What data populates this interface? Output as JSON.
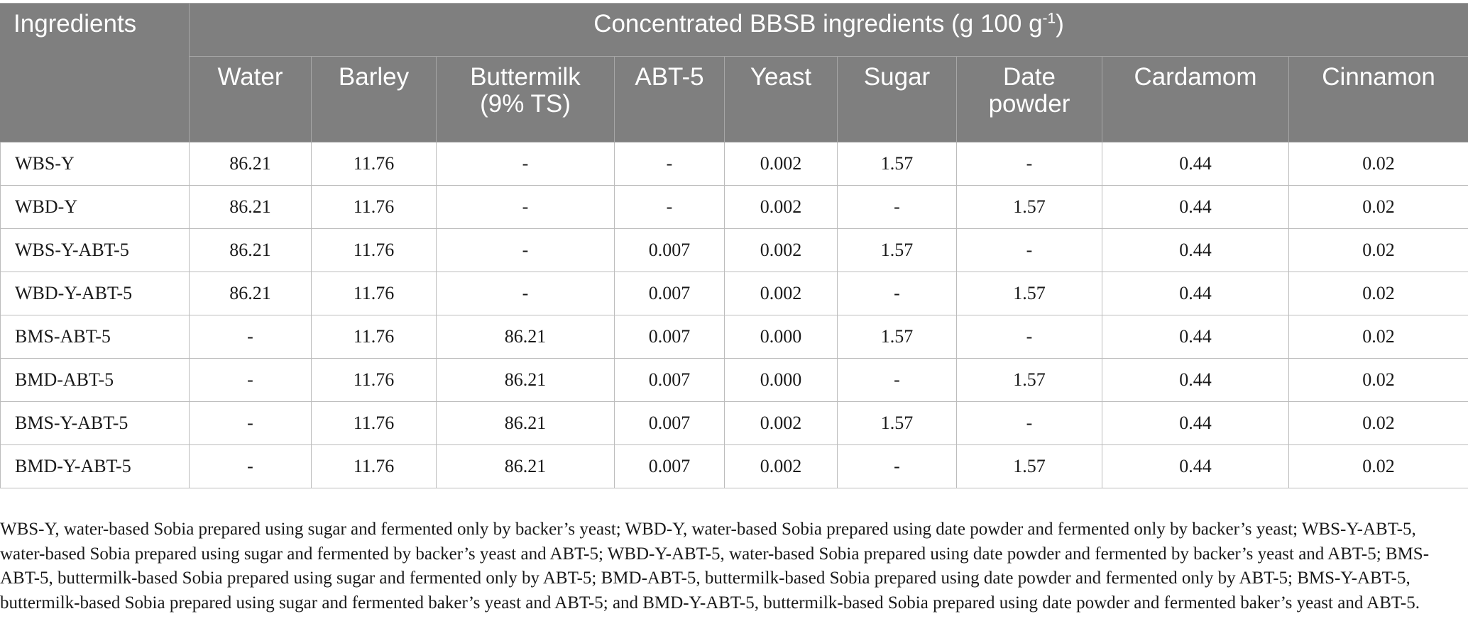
{
  "table": {
    "corner_header": "Ingredients",
    "group_header": "Concentrated BBSB ingredients (g 100 g",
    "group_header_sup": "-1",
    "group_header_suffix": ")",
    "columns": [
      {
        "line1": "Water",
        "line2": ""
      },
      {
        "line1": "Barley",
        "line2": ""
      },
      {
        "line1": "Buttermilk",
        "line2": "(9% TS)"
      },
      {
        "line1": "ABT-5",
        "line2": ""
      },
      {
        "line1": "Yeast",
        "line2": ""
      },
      {
        "line1": "Sugar",
        "line2": ""
      },
      {
        "line1": "Date",
        "line2": "powder"
      },
      {
        "line1": "Cardamom",
        "line2": ""
      },
      {
        "line1": "Cinnamon",
        "line2": ""
      }
    ],
    "rows": [
      {
        "name": "WBS-Y",
        "cells": [
          "86.21",
          "11.76",
          "-",
          "-",
          "0.002",
          "1.57",
          "-",
          "0.44",
          "0.02"
        ]
      },
      {
        "name": "WBD-Y",
        "cells": [
          "86.21",
          "11.76",
          "-",
          "-",
          "0.002",
          "-",
          "1.57",
          "0.44",
          "0.02"
        ]
      },
      {
        "name": "WBS-Y-ABT-5",
        "cells": [
          "86.21",
          "11.76",
          "-",
          "0.007",
          "0.002",
          "1.57",
          "-",
          "0.44",
          "0.02"
        ]
      },
      {
        "name": "WBD-Y-ABT-5",
        "cells": [
          "86.21",
          "11.76",
          "-",
          "0.007",
          "0.002",
          "-",
          "1.57",
          "0.44",
          "0.02"
        ]
      },
      {
        "name": "BMS-ABT-5",
        "cells": [
          "-",
          "11.76",
          "86.21",
          "0.007",
          "0.000",
          "1.57",
          "-",
          "0.44",
          "0.02"
        ]
      },
      {
        "name": "BMD-ABT-5",
        "cells": [
          "-",
          "11.76",
          "86.21",
          "0.007",
          "0.000",
          "-",
          "1.57",
          "0.44",
          "0.02"
        ]
      },
      {
        "name": "BMS-Y-ABT-5",
        "cells": [
          "-",
          "11.76",
          "86.21",
          "0.007",
          "0.002",
          "1.57",
          "-",
          "0.44",
          "0.02"
        ]
      },
      {
        "name": "BMD-Y-ABT-5",
        "cells": [
          "-",
          "11.76",
          "86.21",
          "0.007",
          "0.002",
          "-",
          "1.57",
          "0.44",
          "0.02"
        ]
      }
    ]
  },
  "footnote": "WBS-Y, water-based Sobia prepared using sugar and fermented only by backer’s yeast; WBD-Y, water-based Sobia prepared using date powder and fermented only by backer’s yeast; WBS-Y-ABT-5, water-based Sobia prepared using sugar and fermented by backer’s yeast and ABT-5; WBD-Y-ABT-5, water-based Sobia prepared using date powder and fermented by backer’s yeast and ABT-5; BMS-ABT-5, buttermilk-based Sobia prepared using sugar and fermented only by ABT-5; BMD-ABT-5, buttermilk-based Sobia prepared using date powder and fermented only by ABT-5; BMS-Y-ABT-5, buttermilk-based Sobia prepared using sugar and fermented baker’s yeast and ABT-5; and BMD-Y-ABT-5, buttermilk-based Sobia prepared using date powder and fermented baker’s yeast and ABT-5.",
  "colors": {
    "header_bg": "#7f7f7f",
    "header_text": "#ffffff",
    "grid": "#bcbcbc"
  }
}
